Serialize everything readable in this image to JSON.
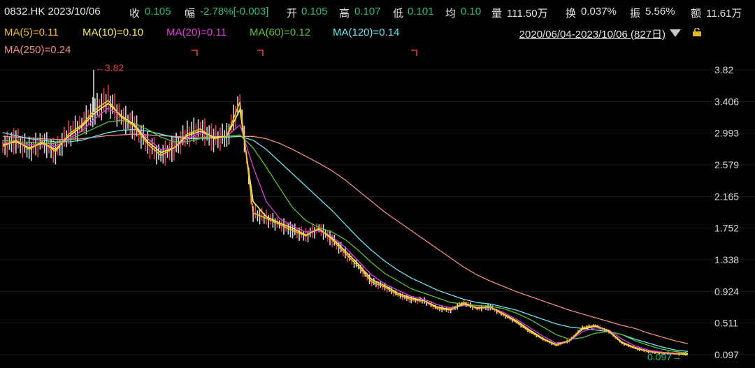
{
  "header": {
    "code_date": "0832.HK 2023/10/06",
    "close_label": "收",
    "close_value": "0.105",
    "range_label": "幅",
    "range_value": "-2.78%[-0.003]",
    "open_label": "开",
    "open_value": "0.105",
    "high_label": "高",
    "high_value": "0.107",
    "low_label": "低",
    "low_value": "0.101",
    "avg_label": "均",
    "avg_value": "0.10",
    "vol_label": "量",
    "vol_value": "111.50万",
    "turnover_label": "换",
    "turnover_value": "0.037%",
    "amp_label": "振",
    "amp_value": "5.56%",
    "amount_label": "额",
    "amount_value": "11.61万"
  },
  "ma_legend": {
    "ma5": "MA(5)=0.11",
    "ma10": "MA(10)=0.10",
    "ma20": "MA(20)=0.11",
    "ma60": "MA(60)=0.12",
    "ma120": "MA(120)=0.14",
    "ma250": "MA(250)=0.24"
  },
  "date_range": "2020/06/04-2023/10/06 (827日)",
  "colors": {
    "up": "#e63946",
    "down": "#2fbf71",
    "ma5": "#f5b82e",
    "ma10": "#f7ef5a",
    "ma20": "#e43ce0",
    "ma60": "#5bc236",
    "ma120": "#6ee5f0",
    "ma250": "#f08a80"
  },
  "chart_data": {
    "type": "line",
    "title": "",
    "xlabel": "",
    "ylabel": "",
    "x_range": [
      "2020/06/04",
      "2023/10/06"
    ],
    "ylim": [
      0.0,
      4.15
    ],
    "yticks": [
      "3.82",
      "3.406",
      "2.993",
      "2.579",
      "2.165",
      "1.752",
      "1.338",
      "0.924",
      "0.511",
      "0.097"
    ],
    "grid": true,
    "annotations": {
      "high": "3.82",
      "last": "0.097"
    },
    "series": [
      {
        "name": "MA(5)",
        "key": "ma5",
        "values": [
          2.82,
          2.9,
          2.78,
          2.88,
          2.75,
          2.98,
          3.1,
          3.3,
          3.42,
          3.2,
          3.08,
          2.85,
          2.7,
          2.8,
          2.98,
          3.05,
          2.92,
          2.95,
          3.4,
          1.95,
          1.88,
          1.8,
          1.72,
          1.65,
          1.75,
          1.6,
          1.42,
          1.25,
          1.05,
          0.98,
          0.88,
          0.82,
          0.8,
          0.7,
          0.68,
          0.78,
          0.7,
          0.72,
          0.62,
          0.52,
          0.4,
          0.3,
          0.22,
          0.28,
          0.45,
          0.48,
          0.4,
          0.25,
          0.18,
          0.14,
          0.12,
          0.11,
          0.11
        ]
      },
      {
        "name": "MA(10)",
        "key": "ma10",
        "values": [
          2.84,
          2.88,
          2.8,
          2.86,
          2.78,
          2.95,
          3.08,
          3.26,
          3.38,
          3.22,
          3.1,
          2.88,
          2.74,
          2.8,
          2.96,
          3.02,
          2.94,
          2.95,
          3.3,
          2.1,
          1.9,
          1.82,
          1.75,
          1.66,
          1.74,
          1.62,
          1.45,
          1.28,
          1.08,
          1.0,
          0.9,
          0.84,
          0.8,
          0.72,
          0.69,
          0.76,
          0.71,
          0.72,
          0.63,
          0.54,
          0.42,
          0.31,
          0.23,
          0.28,
          0.43,
          0.47,
          0.41,
          0.26,
          0.19,
          0.14,
          0.12,
          0.11,
          0.1
        ]
      },
      {
        "name": "MA(20)",
        "key": "ma20",
        "values": [
          2.86,
          2.87,
          2.84,
          2.85,
          2.82,
          2.92,
          3.02,
          3.18,
          3.32,
          3.22,
          3.1,
          2.92,
          2.78,
          2.8,
          2.92,
          3.0,
          2.95,
          2.95,
          3.1,
          2.55,
          2.1,
          1.88,
          1.78,
          1.7,
          1.72,
          1.64,
          1.5,
          1.32,
          1.14,
          1.02,
          0.94,
          0.86,
          0.82,
          0.75,
          0.71,
          0.74,
          0.72,
          0.71,
          0.65,
          0.56,
          0.45,
          0.34,
          0.25,
          0.27,
          0.4,
          0.45,
          0.42,
          0.3,
          0.21,
          0.16,
          0.13,
          0.12,
          0.11
        ]
      },
      {
        "name": "MA(60)",
        "key": "ma60",
        "values": [
          2.9,
          2.88,
          2.87,
          2.86,
          2.86,
          2.9,
          2.98,
          3.06,
          3.14,
          3.16,
          3.12,
          3.04,
          2.94,
          2.88,
          2.88,
          2.92,
          2.94,
          2.95,
          2.97,
          2.8,
          2.55,
          2.28,
          2.02,
          1.85,
          1.76,
          1.7,
          1.6,
          1.46,
          1.3,
          1.16,
          1.06,
          0.96,
          0.9,
          0.84,
          0.78,
          0.76,
          0.74,
          0.73,
          0.7,
          0.64,
          0.56,
          0.46,
          0.36,
          0.3,
          0.32,
          0.38,
          0.4,
          0.36,
          0.28,
          0.22,
          0.17,
          0.14,
          0.12
        ]
      },
      {
        "name": "MA(120)",
        "key": "ma120",
        "values": [
          3.0,
          2.96,
          2.92,
          2.9,
          2.88,
          2.88,
          2.9,
          2.95,
          3.0,
          3.03,
          3.04,
          3.02,
          2.98,
          2.94,
          2.92,
          2.92,
          2.93,
          2.94,
          2.95,
          2.9,
          2.78,
          2.62,
          2.46,
          2.3,
          2.14,
          1.98,
          1.8,
          1.62,
          1.46,
          1.32,
          1.2,
          1.1,
          1.02,
          0.94,
          0.88,
          0.82,
          0.78,
          0.76,
          0.72,
          0.68,
          0.62,
          0.56,
          0.5,
          0.46,
          0.44,
          0.42,
          0.4,
          0.36,
          0.3,
          0.25,
          0.2,
          0.16,
          0.14
        ]
      },
      {
        "name": "MA(250)",
        "key": "ma250",
        "values": [
          2.95,
          2.94,
          2.93,
          2.92,
          2.91,
          2.91,
          2.92,
          2.94,
          2.96,
          2.97,
          2.98,
          2.97,
          2.96,
          2.95,
          2.94,
          2.94,
          2.94,
          2.94,
          2.95,
          2.95,
          2.92,
          2.86,
          2.78,
          2.69,
          2.6,
          2.5,
          2.38,
          2.24,
          2.1,
          1.96,
          1.84,
          1.72,
          1.6,
          1.48,
          1.36,
          1.24,
          1.14,
          1.06,
          0.99,
          0.92,
          0.86,
          0.8,
          0.74,
          0.68,
          0.63,
          0.58,
          0.53,
          0.48,
          0.44,
          0.38,
          0.33,
          0.28,
          0.24
        ]
      }
    ]
  }
}
